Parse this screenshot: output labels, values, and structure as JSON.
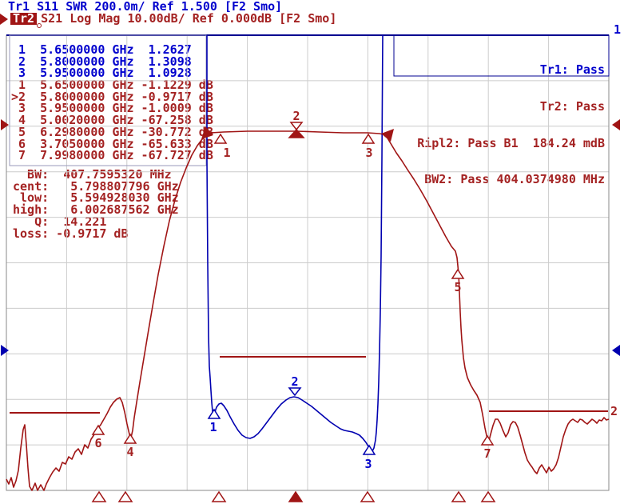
{
  "colors": {
    "blue_text": "#0000cd",
    "blue_trace": "#0000b0",
    "red_text": "#a42222",
    "red_trace": "#a01515",
    "grid": "#cccccc",
    "border": "#888888",
    "top_border": "#000090"
  },
  "titles": {
    "tr1": "Tr1 S11 SWR 200.0m/ Ref 1.500 [F2 Smo]",
    "tr2_badge": "Tr2",
    "tr2": "S21 Log Mag 10.00dB/ Ref 0.000dB [F2 Smo]"
  },
  "marker_table": {
    "tr1_rows": [
      " 1  5.6500000 GHz  1.2627",
      " 2  5.8000000 GHz  1.3098",
      " 3  5.9500000 GHz  1.0928"
    ],
    "tr2_rows": [
      " 1  5.6500000 GHz -1.1229 dB",
      ">2  5.8000000 GHz -0.9717 dB",
      " 3  5.9500000 GHz -1.0009 dB",
      " 4  5.0020000 GHz -67.258 dB",
      " 5  6.2980000 GHz -30.772 dB",
      " 6  3.7050000 GHz -65.633 dB",
      " 7  7.9980000 GHz -67.727 dB"
    ]
  },
  "bw_stats": {
    "rows": [
      "  BW:  407.7595320 MHz",
      "cent:   5.798807796 GHz",
      " low:   5.594928030 GHz",
      "high:   6.002687562 GHz",
      "   Q:  14.221",
      "loss: -0.9717 dB"
    ]
  },
  "limit_results": {
    "tr1": "Tr1: Pass",
    "tr2": "Tr2: Pass",
    "ripple": "Ripl2: Pass B1  184.24 mdB",
    "bw2": "BW2: Pass 404.0374980 MHz"
  },
  "edge_labels": {
    "trace1_offscale": "1",
    "trace2_end": "2"
  },
  "marker_labels": {
    "m1": "1",
    "m2": "2",
    "m3": "3",
    "m4": "4",
    "m5": "5",
    "m6": "6",
    "m7": "7"
  }
}
